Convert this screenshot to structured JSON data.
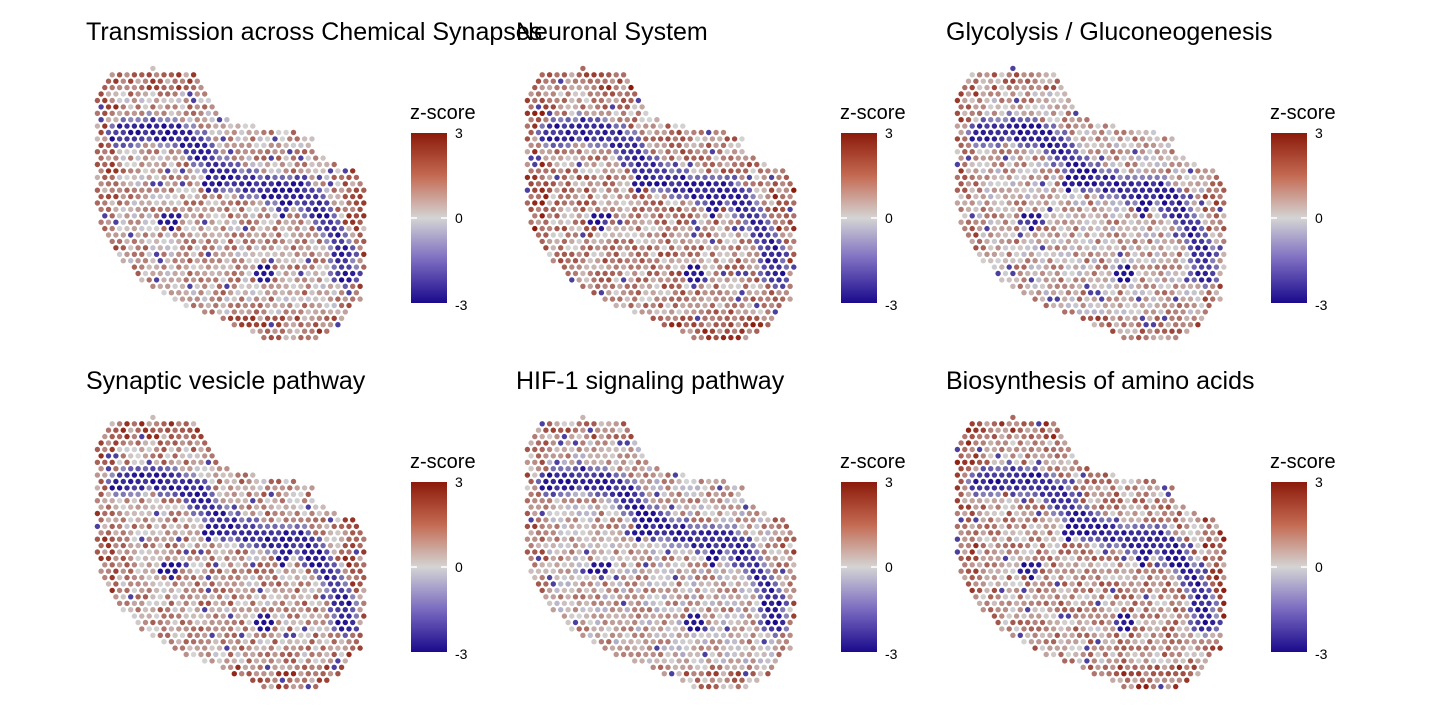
{
  "colors": {
    "low": "#1a0a8c",
    "mid": "#d4d4d4",
    "high": "#8b1a0a",
    "background": "#ffffff"
  },
  "chart_data": [
    {
      "type": "heatmap",
      "title": "Transmission across Chemical Synapses",
      "legend": {
        "title": "z-score",
        "ticks": [
          "3",
          "0",
          "-3"
        ],
        "range": [
          -3,
          3
        ],
        "position": "right"
      }
    },
    {
      "type": "heatmap",
      "title": "Neuronal System",
      "legend": {
        "title": "z-score",
        "ticks": [
          "3",
          "0",
          "-3"
        ],
        "range": [
          -3,
          3
        ],
        "position": "right"
      }
    },
    {
      "type": "heatmap",
      "title": "Glycolysis / Gluconeogenesis",
      "legend": {
        "title": "z-score",
        "ticks": [
          "3",
          "0",
          "-3"
        ],
        "range": [
          -3,
          3
        ],
        "position": "right"
      }
    },
    {
      "type": "heatmap",
      "title": "Synaptic vesicle pathway",
      "legend": {
        "title": "z-score",
        "ticks": [
          "3",
          "0",
          "-3"
        ],
        "range": [
          -3,
          3
        ],
        "position": "right"
      }
    },
    {
      "type": "heatmap",
      "title": "HIF-1 signaling pathway",
      "legend": {
        "title": "z-score",
        "ticks": [
          "3",
          "0",
          "-3"
        ],
        "range": [
          -3,
          3
        ],
        "position": "right"
      }
    },
    {
      "type": "heatmap",
      "title": "Biosynthesis of amino acids",
      "legend": {
        "title": "z-score",
        "ticks": [
          "3",
          "0",
          "-3"
        ],
        "range": [
          -3,
          3
        ],
        "position": "right"
      }
    }
  ]
}
